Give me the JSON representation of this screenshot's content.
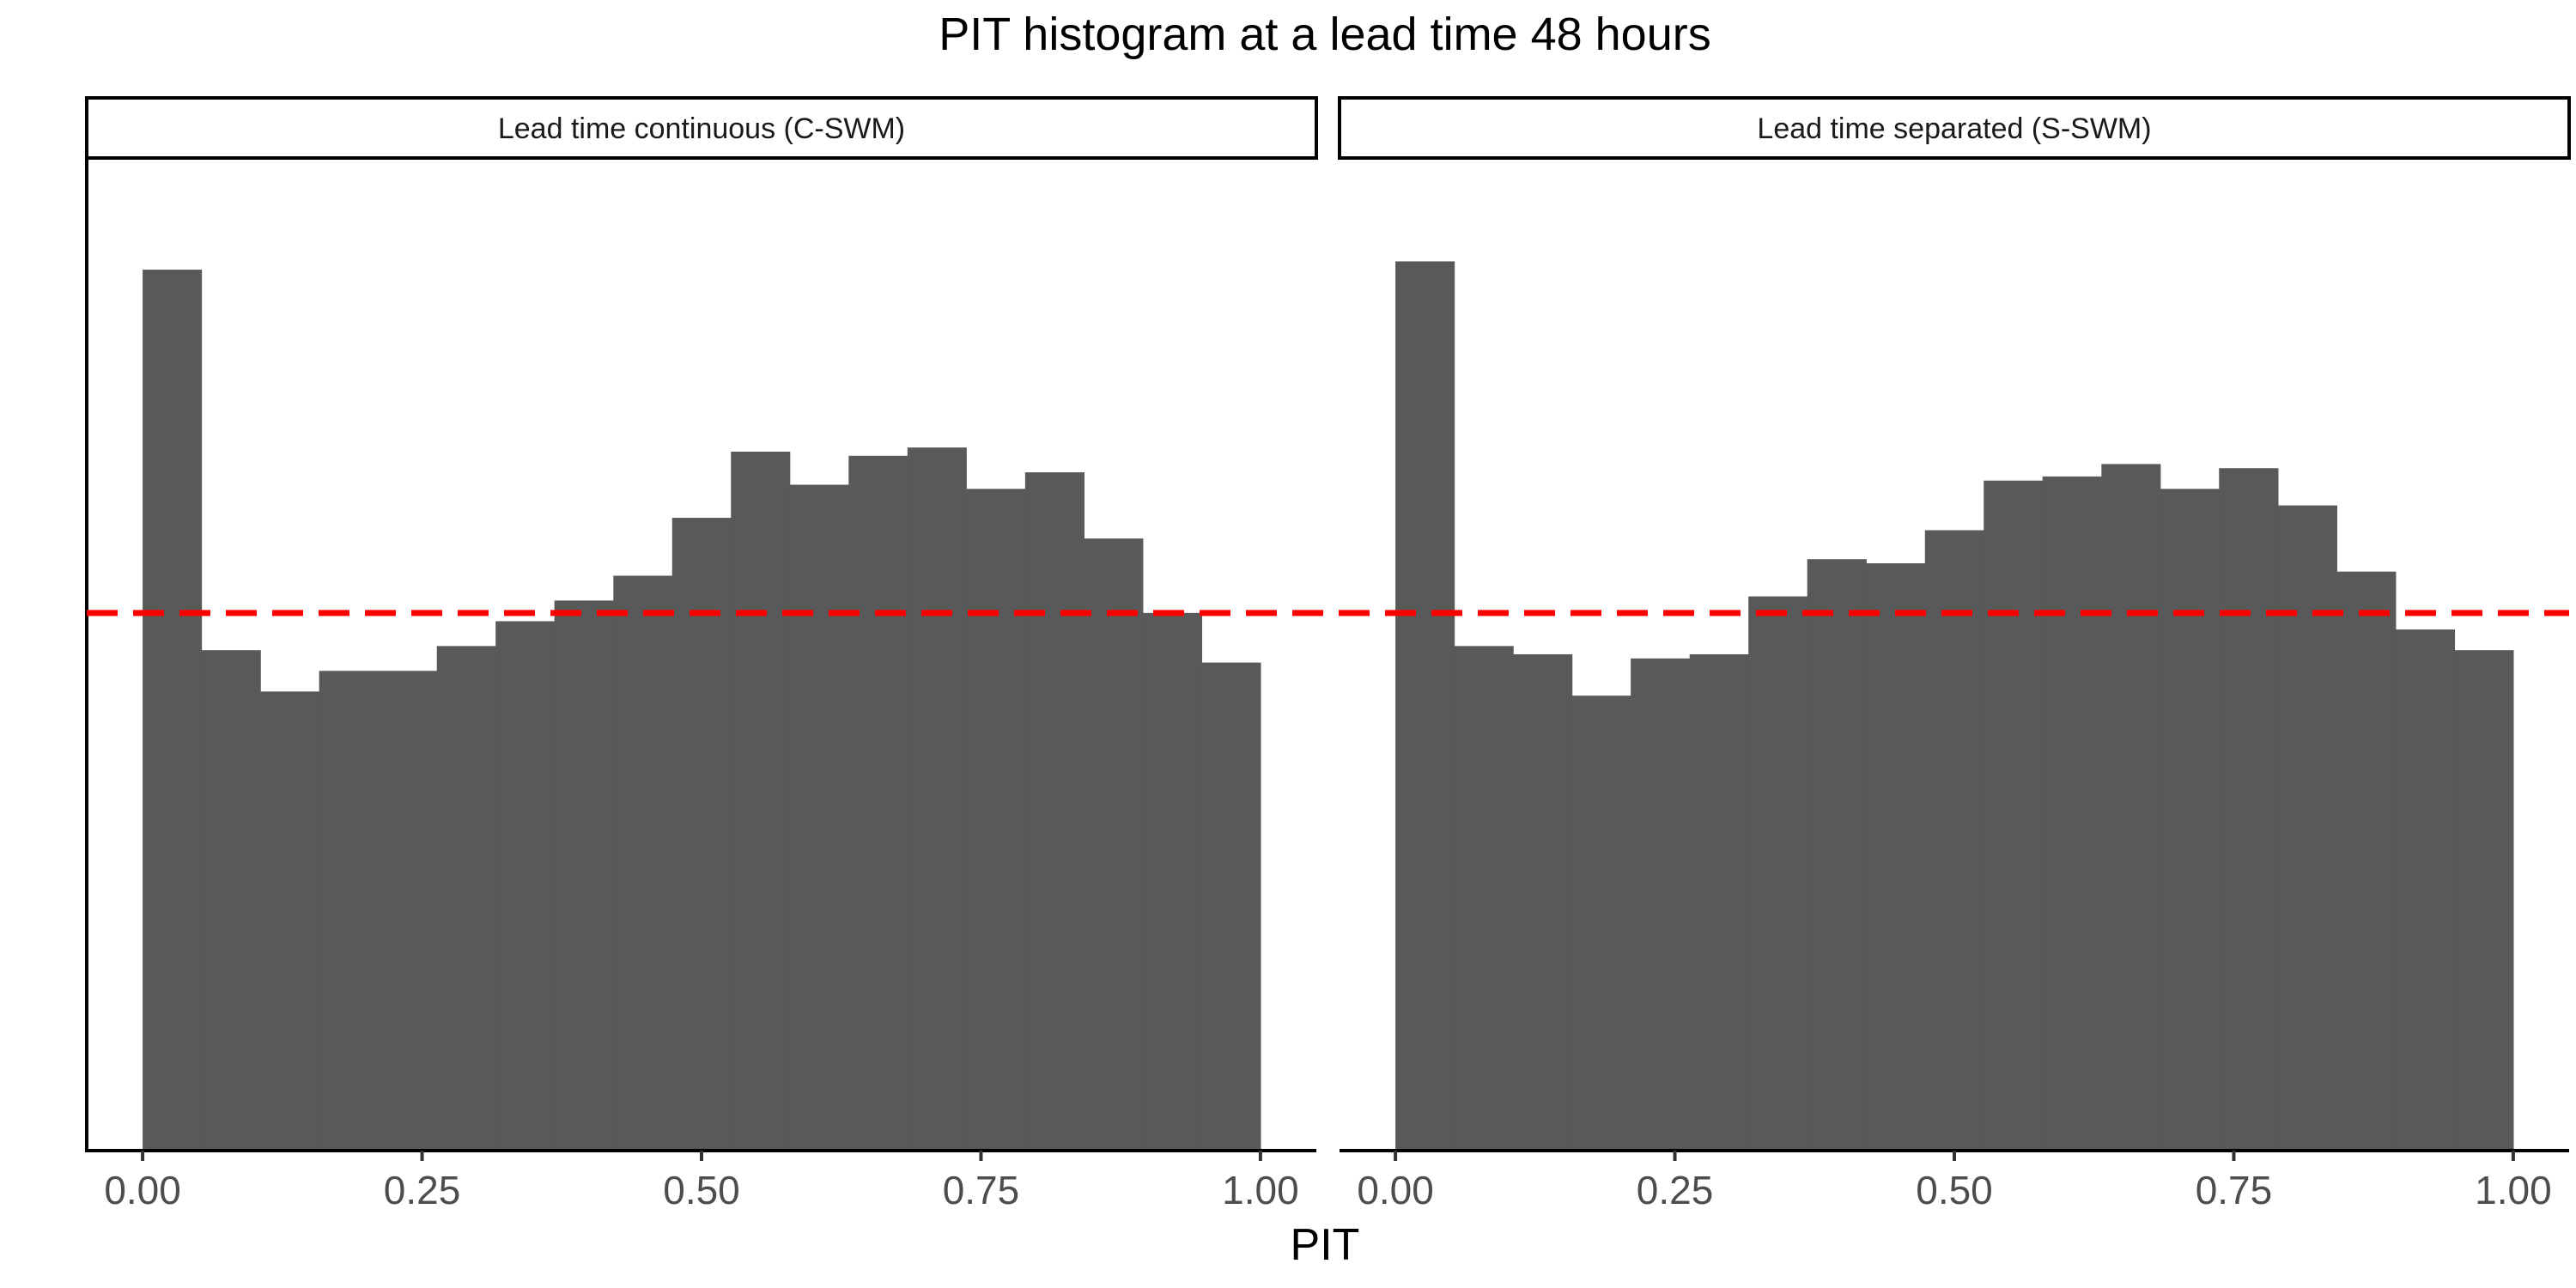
{
  "chart_data": {
    "type": "bar",
    "title": "PIT histogram at a lead time 48 hours",
    "xlabel": "PIT",
    "ylabel": "",
    "xlim": [
      -0.05,
      1.05
    ],
    "ylim": [
      0,
      2.4
    ],
    "x_ticks": [
      "0.00",
      "0.25",
      "0.50",
      "0.75",
      "1.00"
    ],
    "x_tick_values": [
      0.0,
      0.25,
      0.5,
      0.75,
      1.0
    ],
    "bin_edges": [
      0.0,
      0.0526,
      0.1053,
      0.1579,
      0.2105,
      0.2632,
      0.3158,
      0.3684,
      0.4211,
      0.4737,
      0.5263,
      0.5789,
      0.6316,
      0.6842,
      0.7368,
      0.7895,
      0.8421,
      0.8947,
      0.9474,
      1.0
    ],
    "reference_line": {
      "y": 1.3,
      "style": "dashed",
      "color": "#ff0000"
    },
    "bar_color": "#595959",
    "grid": false,
    "facets": [
      {
        "strip_label": "Lead time continuous (C-SWM)",
        "values": [
          2.13,
          1.21,
          1.11,
          1.16,
          1.16,
          1.22,
          1.28,
          1.33,
          1.39,
          1.53,
          1.69,
          1.61,
          1.68,
          1.7,
          1.6,
          1.64,
          1.48,
          1.3,
          1.18
        ]
      },
      {
        "strip_label": "Lead time separated (S-SWM)",
        "values": [
          2.15,
          1.22,
          1.2,
          1.1,
          1.19,
          1.2,
          1.34,
          1.43,
          1.42,
          1.5,
          1.62,
          1.63,
          1.66,
          1.6,
          1.65,
          1.56,
          1.4,
          1.26,
          1.21
        ]
      }
    ]
  }
}
